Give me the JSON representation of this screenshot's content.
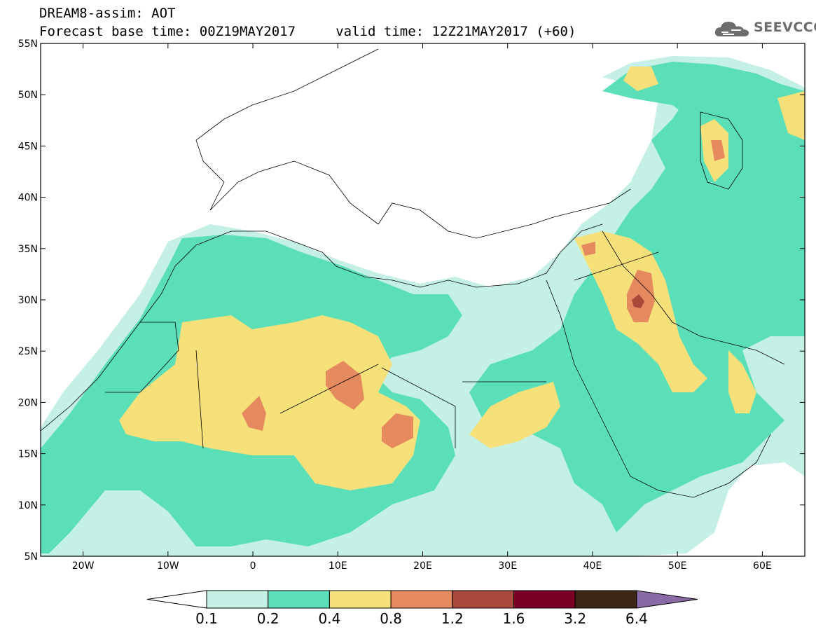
{
  "title_line1": "DREAM8-assim: AOT",
  "title_line2": "Forecast base time: 00Z19MAY2017     valid time: 12Z21MAY2017 (+60)",
  "logo": {
    "text": "SEEVCCC",
    "icon": "cloud-icon"
  },
  "map": {
    "lat_labels": [
      "55N",
      "50N",
      "45N",
      "40N",
      "35N",
      "30N",
      "25N",
      "20N",
      "15N",
      "10N",
      "5N"
    ],
    "lon_labels": [
      "20W",
      "10W",
      "0",
      "10E",
      "20E",
      "30E",
      "40E",
      "50E",
      "60E"
    ],
    "lon_range": [
      -25,
      65
    ],
    "lat_range": [
      5,
      55
    ]
  },
  "colorbar": {
    "labels": [
      "0.1",
      "0.2",
      "0.4",
      "0.8",
      "1.2",
      "1.6",
      "3.2",
      "6.4"
    ],
    "colors": [
      "#ffffff",
      "#c4f0e6",
      "#5adfb9",
      "#f5e07a",
      "#e58a5f",
      "#a9493b",
      "#7a0026",
      "#3d2615",
      "#8a6aa6"
    ]
  }
}
